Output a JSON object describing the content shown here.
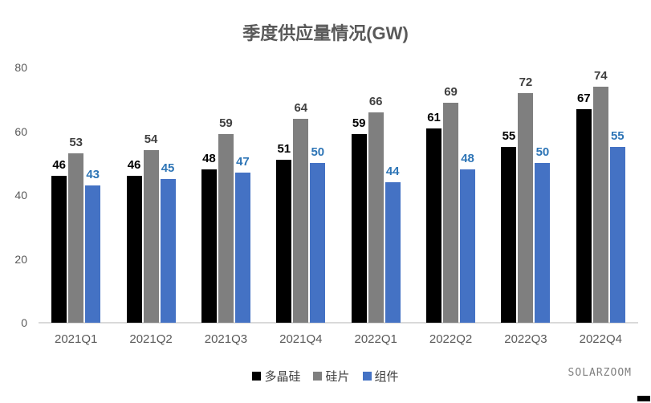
{
  "title": "季度供应量情况(GW)",
  "watermark": "SOLARZOOM",
  "chart_data": {
    "type": "bar",
    "title": "季度供应量情况(GW)",
    "categories": [
      "2021Q1",
      "2021Q2",
      "2021Q3",
      "2021Q4",
      "2022Q1",
      "2022Q2",
      "2022Q3",
      "2022Q4"
    ],
    "series": [
      {
        "key": "polysilicon",
        "name": "多晶硅",
        "color": "#000000",
        "label_color": "#000000",
        "values": [
          46,
          46,
          48,
          51,
          59,
          61,
          55,
          67
        ]
      },
      {
        "key": "wafer",
        "name": "硅片",
        "color": "#7f7f7f",
        "label_color": "#404040",
        "values": [
          53,
          54,
          59,
          64,
          66,
          69,
          72,
          74
        ]
      },
      {
        "key": "module",
        "name": "组件",
        "color": "#4472c4",
        "label_color": "#2e75b6",
        "values": [
          43,
          45,
          47,
          50,
          44,
          48,
          50,
          55
        ]
      }
    ],
    "xlabel": "",
    "ylabel": "",
    "ylim": [
      0,
      80
    ],
    "yticks": [
      0,
      20,
      40,
      60,
      80
    ],
    "grid": false,
    "data_labels": true,
    "legend_position": "bottom",
    "axis_line_color": "#d9d9d9",
    "tick_label_color": "#595959",
    "title_color": "#595959"
  }
}
